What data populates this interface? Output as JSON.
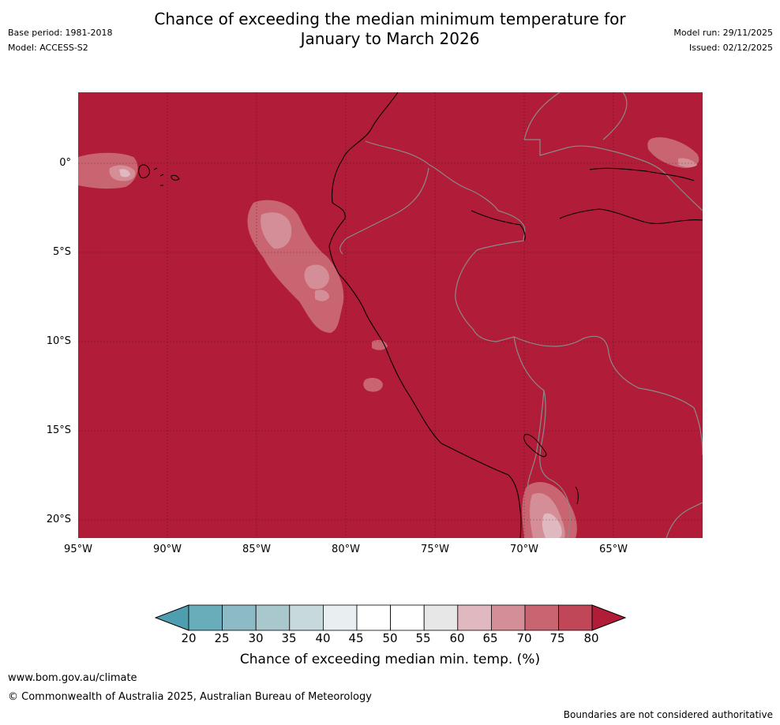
{
  "title_line1": "Chance of exceeding the median minimum temperature for",
  "title_line2": "January to March 2026",
  "base_period": "Base period: 1981-2018",
  "model": "Model: ACCESS-S2",
  "model_run": "Model run: 29/11/2025",
  "issued": "Issued: 02/12/2025",
  "map": {
    "lat_labels": [
      "0°",
      "5°S",
      "10°S",
      "15°S",
      "20°S"
    ],
    "lon_labels": [
      "95°W",
      "90°W",
      "85°W",
      "80°W",
      "75°W",
      "70°W",
      "65°W"
    ],
    "base_color": "#B11C38"
  },
  "colorbar": {
    "ticks": [
      "20",
      "25",
      "30",
      "35",
      "40",
      "45",
      "50",
      "55",
      "60",
      "65",
      "70",
      "75",
      "80"
    ],
    "colors": [
      "#6AADBA",
      "#8CBAC5",
      "#A9C8CE",
      "#C8D9DD",
      "#E9EFF1",
      "#FFFFFF",
      "#FFFFFF",
      "#E7E7E7",
      "#E0B8BF",
      "#D48E98",
      "#C86571",
      "#BF4757"
    ],
    "low_color": "#4E9EAF",
    "high_color": "#B11C38",
    "label": "Chance of exceeding median min. temp. (%)"
  },
  "footer": {
    "url": "www.bom.gov.au/climate",
    "copyright": "© Commonwealth of Australia 2025, Australian Bureau of Meteorology",
    "note": "Boundaries are not considered authoritative"
  }
}
